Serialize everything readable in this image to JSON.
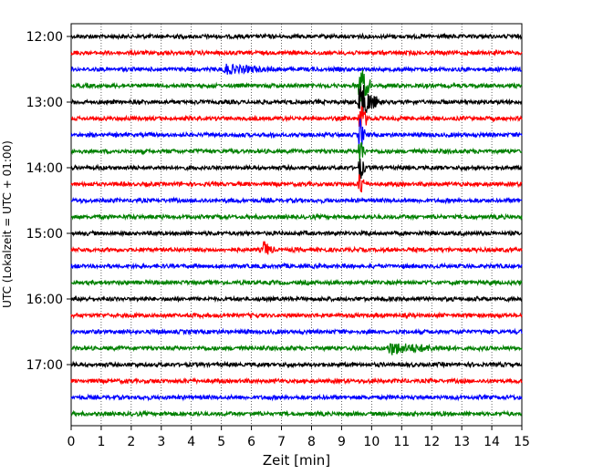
{
  "chart_data": {
    "type": "line",
    "title": "",
    "xlabel": "Zeit  [min]",
    "ylabel": "UTC (Lokalzeit = UTC + 01:00)",
    "xlim": [
      0,
      15
    ],
    "x_ticks": [
      "0",
      "1",
      "2",
      "3",
      "4",
      "5",
      "6",
      "7",
      "8",
      "9",
      "10",
      "11",
      "12",
      "13",
      "14",
      "15"
    ],
    "y_tick_labels": [
      "12:00",
      "13:00",
      "14:00",
      "15:00",
      "16:00",
      "17:00"
    ],
    "y_tick_rows": [
      0,
      4,
      8,
      12,
      16,
      20
    ],
    "grid": "vertical-dotted",
    "trace_minutes": 15,
    "trace_colors": [
      "#000000",
      "#ff0000",
      "#0000ff",
      "#008000"
    ],
    "traces": [
      {
        "start": "12:00",
        "events": []
      },
      {
        "start": "12:15",
        "events": []
      },
      {
        "start": "12:30",
        "events": [
          {
            "t": 5.1,
            "amp": 0.28,
            "dur": 1.6
          }
        ]
      },
      {
        "start": "12:45",
        "events": [
          {
            "t": 9.6,
            "amp": 1.5,
            "dur": 0.4
          }
        ]
      },
      {
        "start": "13:00",
        "events": [
          {
            "t": 9.6,
            "amp": 1.5,
            "dur": 0.6
          }
        ]
      },
      {
        "start": "13:15",
        "events": [
          {
            "t": 9.6,
            "amp": 1.3,
            "dur": 0.3
          }
        ]
      },
      {
        "start": "13:30",
        "events": [
          {
            "t": 9.6,
            "amp": 1.2,
            "dur": 0.2
          }
        ]
      },
      {
        "start": "13:45",
        "events": [
          {
            "t": 9.6,
            "amp": 1.2,
            "dur": 0.2
          }
        ]
      },
      {
        "start": "14:00",
        "events": [
          {
            "t": 9.6,
            "amp": 1.0,
            "dur": 0.2
          }
        ]
      },
      {
        "start": "14:15",
        "events": [
          {
            "t": 9.6,
            "amp": 1.0,
            "dur": 0.2
          }
        ]
      },
      {
        "start": "14:30",
        "events": []
      },
      {
        "start": "14:45",
        "events": []
      },
      {
        "start": "15:00",
        "events": []
      },
      {
        "start": "15:15",
        "events": [
          {
            "t": 6.4,
            "amp": 0.55,
            "dur": 0.35
          }
        ]
      },
      {
        "start": "15:30",
        "events": []
      },
      {
        "start": "15:45",
        "events": []
      },
      {
        "start": "16:00",
        "events": []
      },
      {
        "start": "16:15",
        "events": []
      },
      {
        "start": "16:30",
        "events": []
      },
      {
        "start": "16:45",
        "events": [
          {
            "t": 10.6,
            "amp": 0.35,
            "dur": 2.0
          }
        ]
      },
      {
        "start": "17:00",
        "events": []
      },
      {
        "start": "17:15",
        "events": []
      },
      {
        "start": "17:30",
        "events": []
      },
      {
        "start": "17:45",
        "events": []
      }
    ]
  }
}
